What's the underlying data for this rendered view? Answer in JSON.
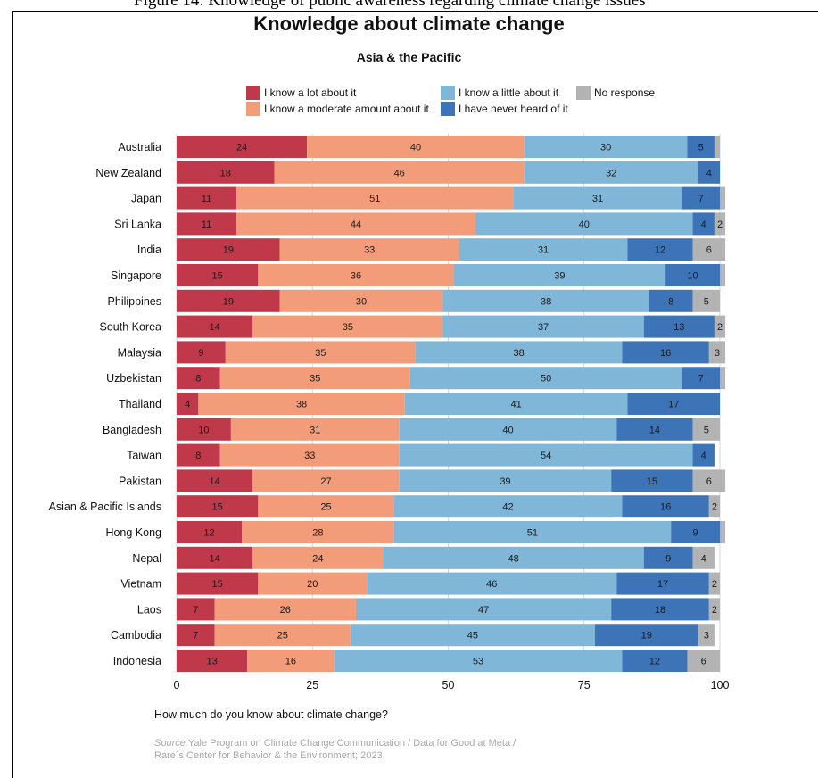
{
  "caption_fragment": "Figure 14: Knowledge of public awareness regarding climate change issues",
  "chart_data": {
    "type": "bar",
    "orientation": "horizontal",
    "stacked": true,
    "title": "Knowledge about climate change",
    "subtitle": "Asia & the Pacific",
    "xlabel": "How much do you know about climate change?",
    "xlim": [
      0,
      100
    ],
    "xticks": [
      "0",
      "25",
      "50",
      "75",
      "100"
    ],
    "grid": true,
    "legend_position": "top",
    "categories": [
      "Australia",
      "New Zealand",
      "Japan",
      "Sri Lanka",
      "India",
      "Singapore",
      "Philippines",
      "South Korea",
      "Malaysia",
      "Uzbekistan",
      "Thailand",
      "Bangladesh",
      "Taiwan",
      "Pakistan",
      "Asian & Pacific Islands",
      "Hong Kong",
      "Nepal",
      "Vietnam",
      "Laos",
      "Cambodia",
      "Indonesia"
    ],
    "series": [
      {
        "name": "I know a lot about it",
        "color": "#c0394b",
        "values": [
          24,
          18,
          11,
          11,
          19,
          15,
          19,
          14,
          9,
          8,
          4,
          10,
          8,
          14,
          15,
          12,
          14,
          15,
          7,
          7,
          13
        ]
      },
      {
        "name": "I know a moderate amount about it",
        "color": "#f29c7a",
        "values": [
          40,
          46,
          51,
          44,
          33,
          36,
          30,
          35,
          35,
          35,
          38,
          31,
          33,
          27,
          25,
          28,
          24,
          20,
          26,
          25,
          16
        ]
      },
      {
        "name": "I know a little about it",
        "color": "#80b6d8",
        "values": [
          30,
          32,
          31,
          40,
          31,
          39,
          38,
          37,
          38,
          50,
          41,
          40,
          54,
          39,
          42,
          51,
          48,
          46,
          47,
          45,
          53
        ]
      },
      {
        "name": "I have never heard of it",
        "color": "#3d74b8",
        "values": [
          5,
          4,
          7,
          4,
          12,
          10,
          8,
          13,
          16,
          7,
          17,
          14,
          4,
          15,
          16,
          9,
          9,
          17,
          18,
          19,
          12
        ]
      },
      {
        "name": "No response",
        "color": "#b3b3b3",
        "values": [
          1,
          0,
          1,
          2,
          6,
          1,
          5,
          2,
          3,
          1,
          0,
          5,
          0,
          6,
          2,
          1,
          4,
          2,
          2,
          3,
          6
        ]
      }
    ],
    "label_min": 2,
    "source": "Yale Program on Climate Change Communication / Data for Good at Meta / Rare´s Center for Behavior & the Environment; 2023"
  },
  "source_prefix": "Source:",
  "source_line1": "Yale Program on Climate Change Communication / Data for Good at Meta /",
  "source_line2": "Rare´s Center for Behavior & the Environment; 2023"
}
